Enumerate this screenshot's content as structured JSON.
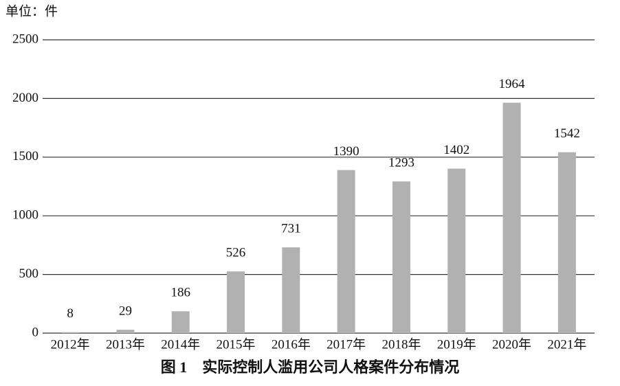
{
  "chart_data": {
    "type": "bar",
    "title": "图 1　实际控制人滥用公司人格案件分布情况",
    "unit_label": "单位：件",
    "categories": [
      "2012年",
      "2013年",
      "2014年",
      "2015年",
      "2016年",
      "2017年",
      "2018年",
      "2019年",
      "2020年",
      "2021年"
    ],
    "values": [
      8,
      29,
      186,
      526,
      731,
      1390,
      1293,
      1402,
      1964,
      1542
    ],
    "color": "#b1b1b1",
    "ylim": [
      0,
      2500
    ],
    "yticks": [
      0,
      500,
      1000,
      1500,
      2000,
      2500
    ],
    "grid": true
  }
}
